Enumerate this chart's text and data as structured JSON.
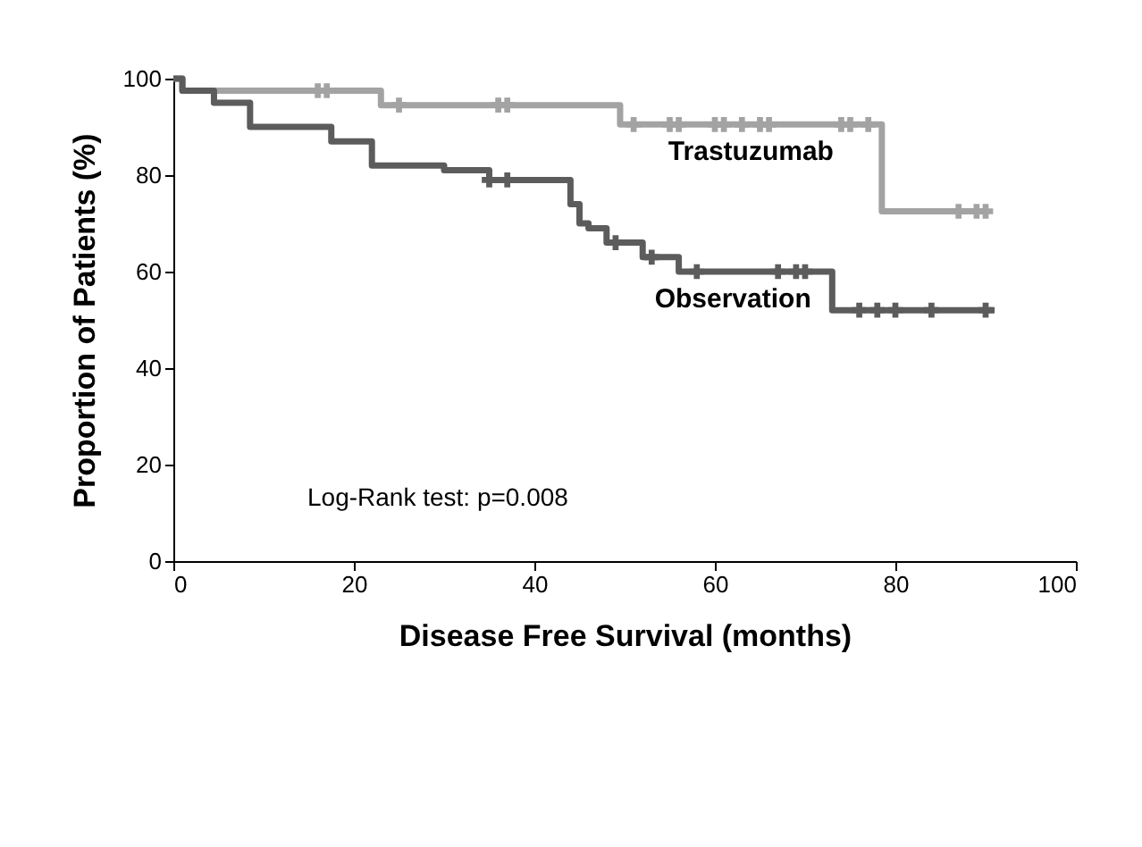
{
  "chart_data": {
    "type": "line",
    "xlabel": "Disease Free Survival (months)",
    "ylabel": "Proportion of Patients (%)",
    "xlim": [
      0,
      100
    ],
    "ylim": [
      0,
      100
    ],
    "xticks": [
      0,
      20,
      40,
      60,
      80,
      100
    ],
    "yticks": [
      0,
      20,
      40,
      60,
      80,
      100
    ],
    "grid": false,
    "marker": "none",
    "line_style": "solid",
    "series": [
      {
        "type": "step",
        "color": "#a3a3a3",
        "x": [
          0,
          1,
          23,
          49.5,
          78.5,
          90
        ],
        "values": [
          100,
          97.5,
          94.5,
          90.5,
          72.5,
          72.5
        ]
      },
      {
        "type": "step",
        "color": "#5c5c5c",
        "x": [
          0,
          1,
          4.5,
          8.5,
          17.5,
          22,
          30,
          35,
          44,
          45,
          46,
          48,
          52,
          56,
          73,
          91
        ],
        "values": [
          100,
          97.5,
          95,
          90,
          87,
          82,
          81,
          79,
          74,
          70,
          69,
          66,
          63,
          60,
          52,
          52
        ]
      },
      {
        "type": "scatter",
        "marker": "cross",
        "color": "#a3a3a3",
        "x": [
          16,
          17,
          25,
          36,
          37,
          51,
          55,
          56,
          60,
          61,
          63,
          65,
          66,
          74,
          75,
          77,
          87,
          89,
          90
        ],
        "values": [
          97.5,
          97.5,
          94.5,
          94.5,
          94.5,
          90.5,
          90.5,
          90.5,
          90.5,
          90.5,
          90.5,
          90.5,
          90.5,
          90.5,
          90.5,
          90.5,
          72.5,
          72.5,
          72.5
        ]
      },
      {
        "type": "scatter",
        "marker": "cross",
        "color": "#5c5c5c",
        "x": [
          35,
          37,
          49,
          53,
          58,
          67,
          69,
          70,
          76,
          78,
          80,
          84,
          90
        ],
        "values": [
          79,
          79,
          66,
          63,
          60,
          60,
          60,
          60,
          52,
          52,
          52,
          52,
          52
        ]
      }
    ],
    "annotations": [
      {
        "text": "Trastuzumab",
        "x": 64,
        "y": 90.5
      },
      {
        "text": "Observation",
        "x": 62,
        "y": 60
      },
      "Log-Rank test: p=0.008"
    ]
  }
}
